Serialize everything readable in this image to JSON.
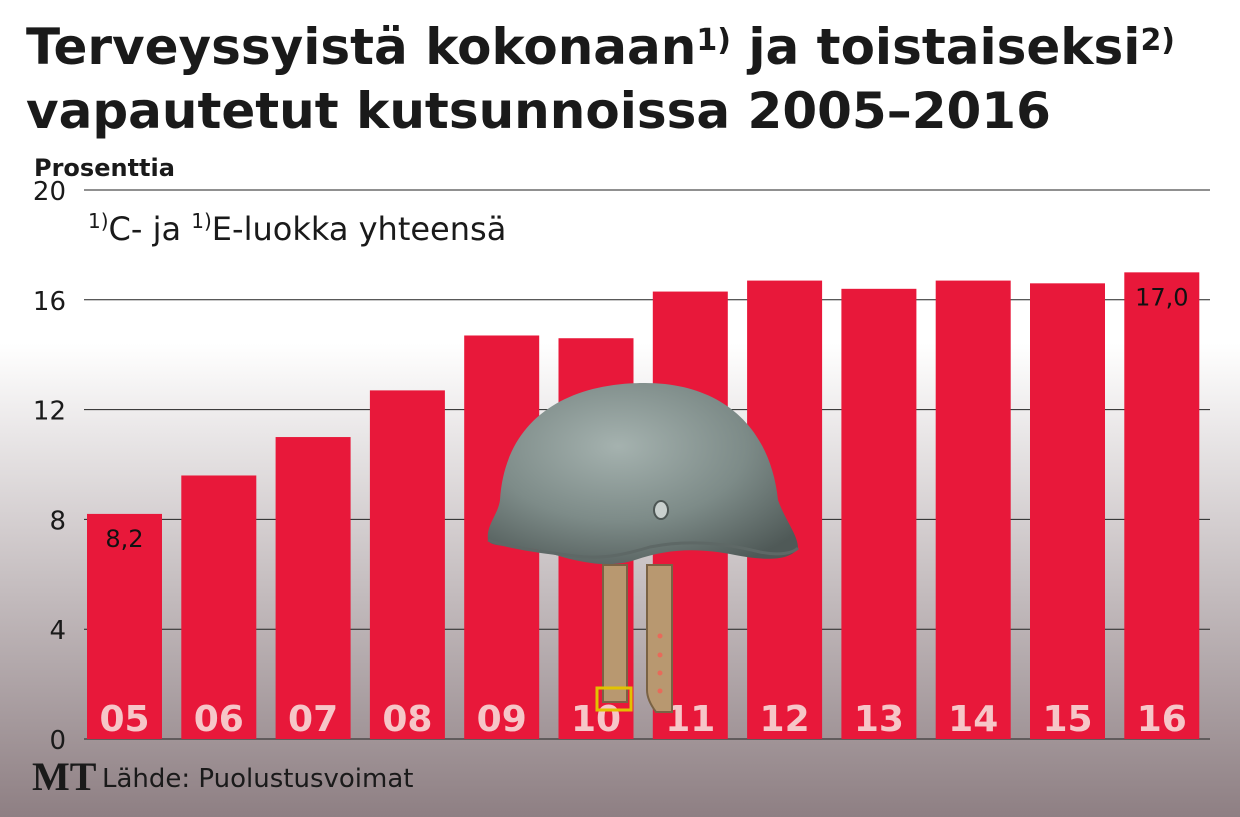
{
  "title": {
    "line1_a": "Terveyssyistä kokonaan",
    "line1_sup1": "1)",
    "line1_b": " ja toistaiseksi",
    "line1_sup2": "2)",
    "line2": "vapautetut kutsunnoissa 2005–2016"
  },
  "footnote": {
    "sup1": "1)",
    "text1": "C- ja ",
    "sup2": "1)",
    "text2": "E-luokka yhteensä"
  },
  "source": {
    "logo": "MT",
    "text": "Lähde: Puolustusvoimat"
  },
  "colors": {
    "bar": "#e8183a",
    "background_top": "#ffffff",
    "background_bottom": "#8e7f83",
    "helmet": "#7d8b88"
  },
  "illustration": "helmet-icon",
  "chart_data": {
    "type": "bar",
    "ylabel": "Prosenttia",
    "ylim": [
      0,
      20
    ],
    "yticks": [
      "0",
      "4",
      "8",
      "12",
      "16",
      "20"
    ],
    "grid": true,
    "categories": [
      "05",
      "06",
      "07",
      "08",
      "09",
      "10",
      "11",
      "12",
      "13",
      "14",
      "15",
      "16"
    ],
    "values": [
      8.2,
      9.6,
      11.0,
      12.7,
      14.7,
      14.6,
      16.3,
      16.7,
      16.4,
      16.7,
      16.6,
      17.0
    ],
    "data_labels": [
      {
        "index": 0,
        "text": "8,2"
      },
      {
        "index": 11,
        "text": "17,0"
      }
    ]
  }
}
